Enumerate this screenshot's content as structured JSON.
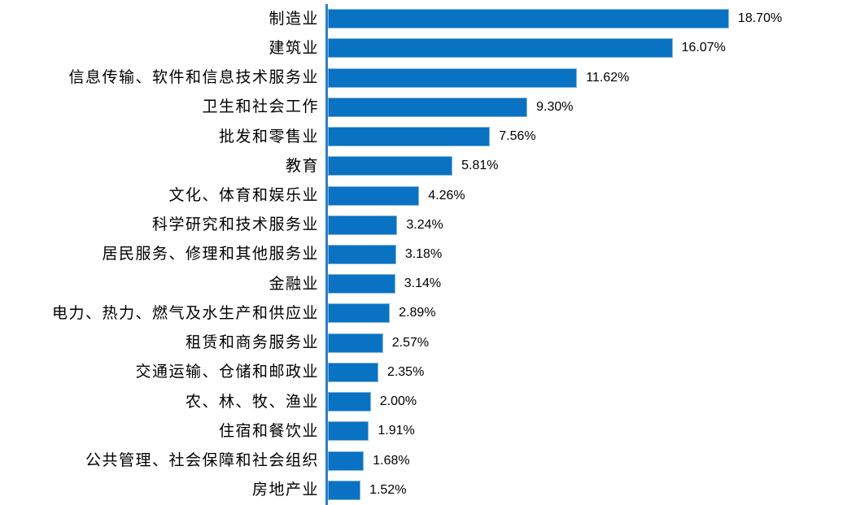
{
  "chart_data": {
    "type": "bar",
    "orientation": "horizontal",
    "title": "",
    "xlabel": "",
    "ylabel": "",
    "grid": false,
    "legend": "none",
    "xlim": [
      0,
      20
    ],
    "categories": [
      "制造业",
      "建筑业",
      "信息传输、软件和信息技术服务业",
      "卫生和社会工作",
      "批发和零售业",
      "教育",
      "文化、体育和娱乐业",
      "科学研究和技术服务业",
      "居民服务、修理和其他服务业",
      "金融业",
      "电力、热力、燃气及水生产和供应业",
      "租赁和商务服务业",
      "交通运输、仓储和邮政业",
      "农、林、牧、渔业",
      "住宿和餐饮业",
      "公共管理、社会保障和社会组织",
      "房地产业"
    ],
    "values": [
      18.7,
      16.07,
      11.62,
      9.3,
      7.56,
      5.81,
      4.26,
      3.24,
      3.18,
      3.14,
      2.89,
      2.57,
      2.35,
      2.0,
      1.91,
      1.68,
      1.52
    ],
    "value_labels": [
      "18.70%",
      "16.07%",
      "11.62%",
      "9.30%",
      "7.56%",
      "5.81%",
      "4.26%",
      "3.24%",
      "3.18%",
      "3.14%",
      "2.89%",
      "2.57%",
      "2.35%",
      "2.00%",
      "1.91%",
      "1.68%",
      "1.52%"
    ],
    "colors": {
      "bar_fill": "#0a72c2",
      "bar_border": "#7db4e0",
      "axis_line": "#2e7fc4",
      "label_text": "#000000"
    }
  }
}
